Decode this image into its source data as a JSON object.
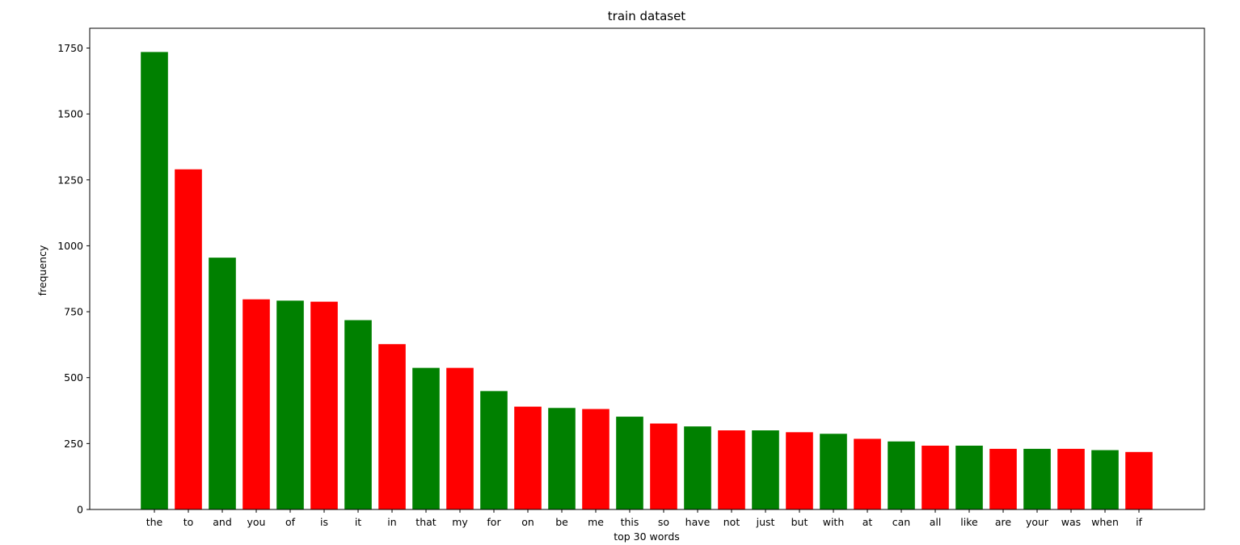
{
  "chart_data": {
    "type": "bar",
    "title": "train dataset",
    "xlabel": "top 30 words",
    "ylabel": "frequency",
    "ylim": [
      0,
      1825
    ],
    "yticks": [
      0,
      250,
      500,
      750,
      1000,
      1250,
      1500,
      1750
    ],
    "yticks_labels": [
      "0",
      "250",
      "500",
      "750",
      "1000",
      "1250",
      "1500",
      "1750"
    ],
    "grid": false,
    "categories": [
      "the",
      "to",
      "and",
      "you",
      "of",
      "is",
      "it",
      "in",
      "that",
      "my",
      "for",
      "on",
      "be",
      "me",
      "this",
      "so",
      "have",
      "not",
      "just",
      "but",
      "with",
      "at",
      "can",
      "all",
      "like",
      "are",
      "your",
      "was",
      "when",
      "if"
    ],
    "values": [
      1735,
      1290,
      955,
      797,
      792,
      788,
      718,
      627,
      537,
      537,
      449,
      390,
      385,
      381,
      352,
      326,
      315,
      300,
      300,
      293,
      287,
      268,
      258,
      242,
      242,
      230,
      230,
      230,
      225,
      218
    ],
    "colors": [
      "#008000",
      "#ff0000"
    ]
  }
}
